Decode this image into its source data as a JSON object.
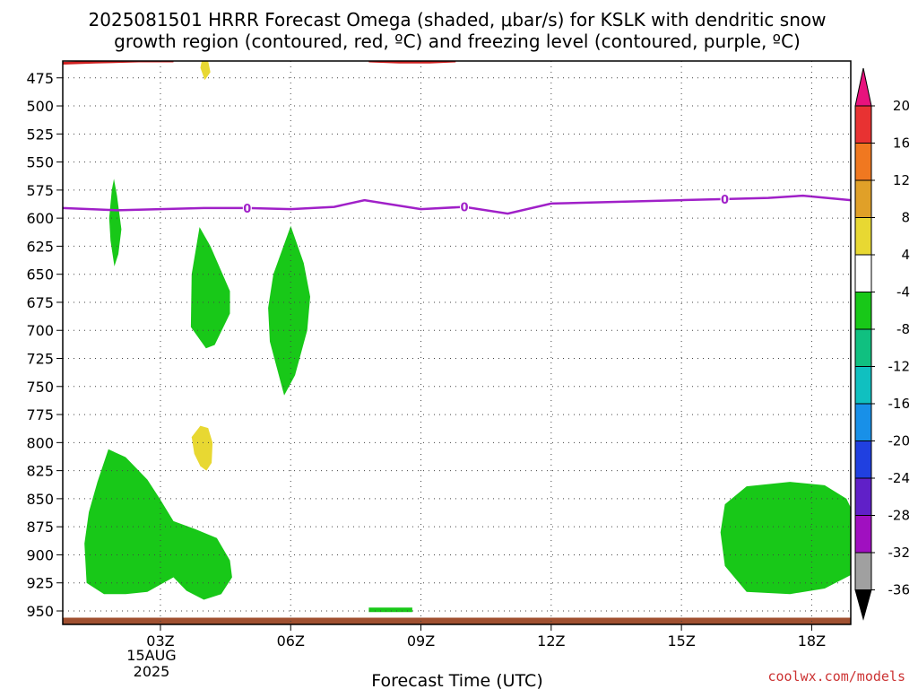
{
  "chart_data": {
    "type": "heatmap",
    "title_line1": "2025081501 HRRR Forecast Omega (shaded, μbar/s) for KSLK with dendritic snow",
    "title_line2": "growth region (contoured, red, ºC) and freezing level (contoured, purple, ºC)",
    "xlabel": "Forecast Time (UTC)",
    "credit": "coolwx.com/models",
    "x_axis": {
      "unit": "hours since 2025-08-15 00Z",
      "range": [
        0.75,
        18.9
      ],
      "ticks": [
        {
          "value": 3,
          "label": "03Z"
        },
        {
          "value": 6,
          "label": "06Z"
        },
        {
          "value": 9,
          "label": "09Z"
        },
        {
          "value": 12,
          "label": "12Z"
        },
        {
          "value": 15,
          "label": "15Z"
        },
        {
          "value": 18,
          "label": "18Z"
        }
      ],
      "date_label": [
        "15AUG",
        "2025"
      ]
    },
    "y_axis": {
      "unit": "hPa",
      "range": [
        460,
        962
      ],
      "inverted": true,
      "ticks": [
        475,
        500,
        525,
        550,
        575,
        600,
        625,
        650,
        675,
        700,
        725,
        750,
        775,
        800,
        825,
        850,
        875,
        900,
        925,
        950
      ]
    },
    "grid": true,
    "colorbar": {
      "labels": [
        "20",
        "16",
        "12",
        "8",
        "4",
        "-4",
        "-8",
        "-12",
        "-16",
        "-20",
        "-24",
        "-28",
        "-32",
        "-36"
      ],
      "colors": [
        "#e8127d",
        "#e83232",
        "#f07820",
        "#e0a028",
        "#e8d832",
        "#ffffff",
        "#18c818",
        "#10c080",
        "#10c0c0",
        "#1890e8",
        "#2040e0",
        "#6020c8",
        "#a010c0",
        "#a0a0a0",
        "#000000"
      ]
    },
    "freezing_level": {
      "color": "#a020c8",
      "label": "0",
      "label_x": [
        5,
        10,
        16
      ],
      "x": [
        0.75,
        2,
        3,
        4,
        5,
        6,
        7,
        7.7,
        9,
        10,
        11,
        12,
        13,
        14,
        15,
        16,
        17,
        17.8,
        18.9
      ],
      "y": [
        591,
        593,
        592,
        591,
        591,
        592,
        590,
        584,
        592,
        590,
        596,
        587,
        586,
        585,
        584,
        583,
        582,
        580,
        584
      ]
    },
    "dgz_contours": [
      {
        "color": "#d02020",
        "x": [
          0.75,
          1.5,
          2.5,
          3.3
        ],
        "y": [
          462,
          461,
          460,
          460
        ]
      },
      {
        "color": "#d02020",
        "x": [
          7.8,
          8.5,
          9.2,
          9.8
        ],
        "y": [
          460,
          461,
          461,
          460
        ]
      }
    ],
    "surface_band": {
      "color": "#a05030",
      "y_top": 956,
      "y_bottom": 962
    },
    "omega_regions": [
      {
        "color": "#18c818",
        "x": [
          1.93,
          2,
          2.1,
          2.03,
          1.94,
          1.85,
          1.82,
          1.88
        ],
        "y": [
          565,
          580,
          610,
          632,
          643,
          620,
          600,
          575
        ]
      },
      {
        "color": "#18c818",
        "x": [
          3.9,
          4.15,
          4.6,
          4.6,
          4.25,
          4.05,
          3.7,
          3.72
        ],
        "y": [
          608,
          625,
          665,
          685,
          713,
          716,
          697,
          650
        ]
      },
      {
        "color": "#18c818",
        "x": [
          6,
          6.3,
          6.45,
          6.38,
          6.1,
          5.85,
          5.52,
          5.48,
          5.6
        ],
        "y": [
          607,
          640,
          670,
          700,
          740,
          758,
          710,
          680,
          650
        ]
      },
      {
        "color": "#18c818",
        "x": [
          1.8,
          2.2,
          2.7,
          3.0,
          3.3,
          3.8,
          4.3,
          4.6,
          4.65,
          4.4,
          4.0,
          3.6,
          3.3,
          2.7,
          2.2,
          1.7,
          1.3,
          1.25,
          1.35,
          1.55
        ],
        "y": [
          806,
          813,
          833,
          851,
          870,
          877,
          885,
          905,
          920,
          935,
          940,
          932,
          920,
          933,
          935,
          935,
          925,
          890,
          862,
          835
        ]
      },
      {
        "color": "#18c818",
        "x": [
          16.0,
          16.5,
          17.5,
          18.3,
          18.8,
          18.9,
          18.9,
          18.3,
          17.5,
          16.5,
          16.0,
          15.9
        ],
        "y": [
          855,
          839,
          835,
          838,
          850,
          858,
          918,
          930,
          935,
          933,
          910,
          880
        ]
      },
      {
        "color": "#18c818",
        "x": [
          7.8,
          8.8,
          8.8,
          7.8
        ],
        "y": [
          947,
          947,
          951,
          951
        ]
      },
      {
        "color": "#e8d832",
        "x": [
          3.95,
          4.1,
          4.15,
          4.02,
          3.92
        ],
        "y": [
          460,
          460,
          470,
          477,
          466
        ]
      },
      {
        "color": "#e8d832",
        "x": [
          3.92,
          4.1,
          4.2,
          4.18,
          4.06,
          3.92,
          3.78,
          3.72
        ],
        "y": [
          785,
          787,
          800,
          818,
          825,
          821,
          810,
          795
        ]
      }
    ]
  }
}
